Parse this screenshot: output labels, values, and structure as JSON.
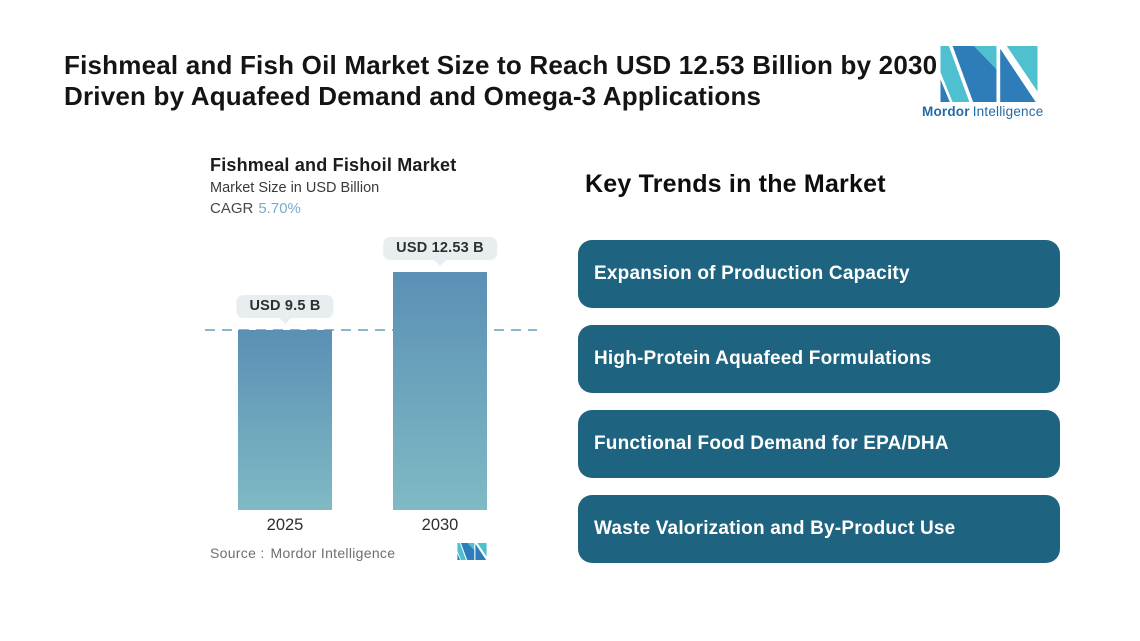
{
  "page": {
    "title_line1": "Fishmeal and Fish Oil Market Size to Reach USD 12.53 Billion by 2030",
    "title_line2": "Driven by Aquafeed Demand and Omega-3 Applications"
  },
  "brand": {
    "name_bold": "Mordor",
    "name_regular": "Intelligence",
    "logo_icon": "mordor-mi-monogram"
  },
  "chart": {
    "title": "Fishmeal and Fishoil Market",
    "subtitle": "Market Size in USD Billion",
    "cagr_label": "CAGR",
    "cagr_value": "5.70%",
    "source_label": "Source :",
    "source_value": "Mordor Intelligence"
  },
  "chart_data": {
    "type": "bar",
    "title": "Fishmeal and Fishoil Market",
    "subtitle": "Market Size in USD Billion",
    "cagr": "5.70%",
    "unit": "USD Billion",
    "categories": [
      "2025",
      "2030"
    ],
    "values": [
      9.5,
      12.53
    ],
    "value_labels": [
      "USD 9.5 B",
      "USD 12.53 B"
    ],
    "ylim": [
      0,
      13.5
    ],
    "reference_line": 9.5,
    "bar_gradient": [
      "#5b8fb5",
      "#7fbac4"
    ],
    "grid": false,
    "legend": false,
    "source": "Mordor Intelligence"
  },
  "trends": {
    "heading": "Key Trends in the Market",
    "items": [
      {
        "label": "Expansion of Production Capacity"
      },
      {
        "label": "High-Protein Aquafeed Formulations"
      },
      {
        "label": "Functional Food Demand for EPA/DHA"
      },
      {
        "label": "Waste Valorization and By-Product Use"
      }
    ]
  },
  "colors": {
    "trend_box": "#1e6480",
    "dashed_line": "#8db6cd",
    "callout_bg": "#e8eef0",
    "callout_text": "#2f2f2f",
    "cagr_value": "#7babcb",
    "logo_teal": "#4ec0cf",
    "logo_blue": "#2e7cb8",
    "brand_text": "#236ba7",
    "title_text": "#141414",
    "source_text": "#6e6e6e"
  }
}
